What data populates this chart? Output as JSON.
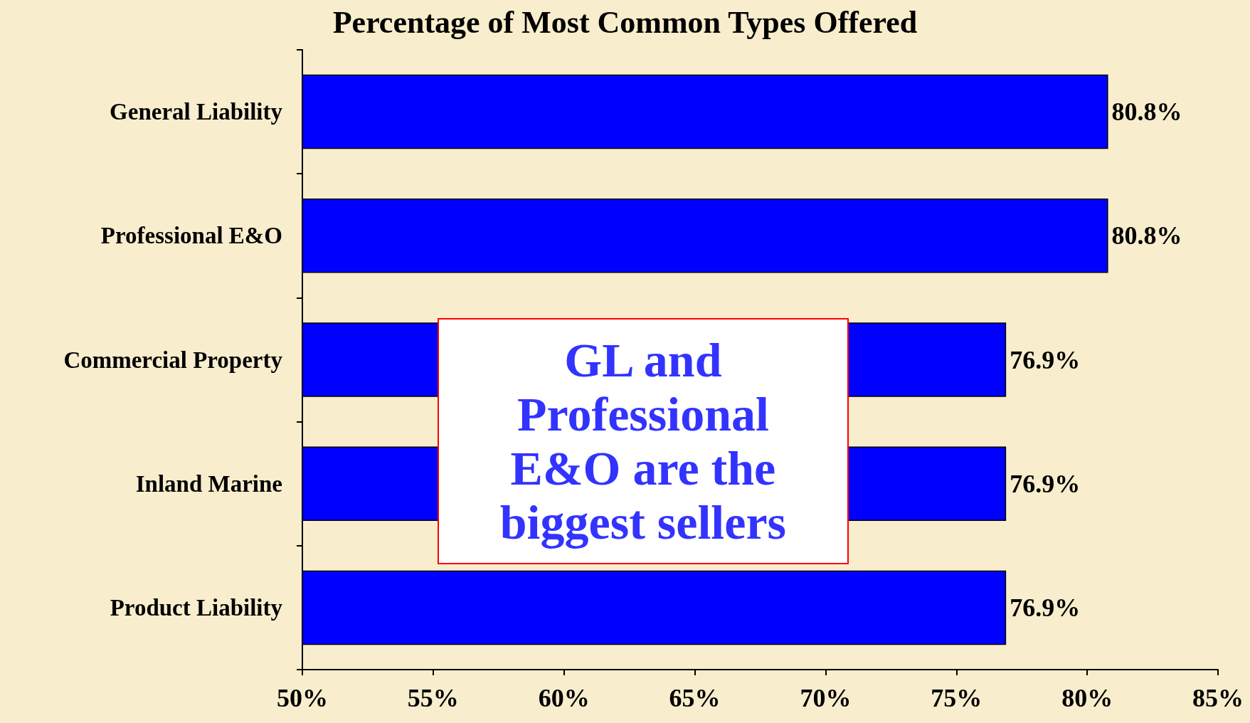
{
  "chart_data": {
    "type": "bar",
    "orientation": "horizontal",
    "title": "Percentage of Most Common Types Offered",
    "categories": [
      "General Liability",
      "Professional E&O",
      "Commercial Property",
      "Inland Marine",
      "Product Liability"
    ],
    "values": [
      80.8,
      80.8,
      76.9,
      76.9,
      76.9
    ],
    "value_labels": [
      "80.8%",
      "80.8%",
      "76.9%",
      "76.9%",
      "76.9%"
    ],
    "color": "#0000ff",
    "xlim": [
      50,
      85
    ],
    "xticks": [
      {
        "value": 50,
        "label": "50%"
      },
      {
        "value": 55,
        "label": "55%"
      },
      {
        "value": 60,
        "label": "60%"
      },
      {
        "value": 65,
        "label": "65%"
      },
      {
        "value": 70,
        "label": "70%"
      },
      {
        "value": 75,
        "label": "75%"
      },
      {
        "value": 80,
        "label": "80%"
      },
      {
        "value": 85,
        "label": "85%"
      }
    ],
    "grid": false,
    "annotations": [
      "GL and Professional E&O are the biggest sellers"
    ]
  }
}
